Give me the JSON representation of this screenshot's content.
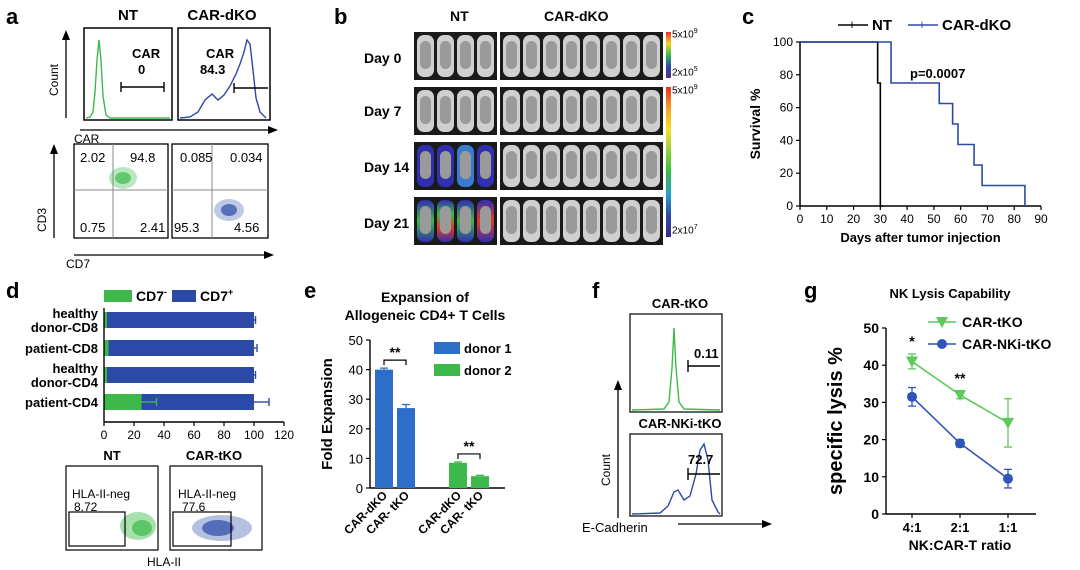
{
  "panels": {
    "a": {
      "label": "a",
      "col_nt": "NT",
      "col_car": "CAR-dKO",
      "hist_ylabel": "Count",
      "hist_xlabel": "CAR",
      "nt_gate_name": "CAR",
      "nt_gate_value": "0",
      "car_gate_name": "CAR",
      "car_gate_value": "84.3",
      "scatter_ylabel": "CD3",
      "scatter_xlabel": "CD7",
      "nt_quads": [
        "2.02",
        "94.8",
        "0.75",
        "2.41"
      ],
      "car_quads": [
        "0.085",
        "0.034",
        "95.3",
        "4.56"
      ]
    },
    "b": {
      "label": "b",
      "col_nt": "NT",
      "col_car": "CAR-dKO",
      "days": [
        "Day 0",
        "Day 7",
        "Day 14",
        "Day 21"
      ],
      "scale1_top": "5x10",
      "scale1_top_exp": "9",
      "scale1_bottom": "2x10",
      "scale1_bottom_exp": "5",
      "scale2_top": "5x10",
      "scale2_top_exp": "9",
      "scale2_bottom": "2x10",
      "scale2_bottom_exp": "7"
    },
    "c": {
      "label": "c",
      "legend": [
        "NT",
        "CAR-dKO"
      ],
      "pvalue": "p=0.0007",
      "ylabel": "Survival %",
      "xlabel": "Days after tumor injection"
    },
    "d": {
      "label": "d",
      "legend_cd7neg": "CD7",
      "legend_cd7neg_sup": "-",
      "legend_cd7pos": "CD7",
      "legend_cd7pos_sup": "+",
      "categories": [
        [
          "healthy",
          "donor-CD8"
        ],
        [
          "patient-CD8"
        ],
        [
          "healthy",
          "donor-CD4"
        ],
        [
          "patient-CD4"
        ]
      ],
      "flow_nt": "NT",
      "flow_car": "CAR-tKO",
      "gate_name": "HLA-II-neg",
      "nt_value": "8.72",
      "car_value": "77.6",
      "flow_xlabel": "HLA-II"
    },
    "e": {
      "label": "e",
      "title_line1": "Expansion of",
      "title_line2": "Allogeneic CD4+ T Cells",
      "ylabel": "Fold Expansion",
      "legend": [
        "donor 1",
        "donor 2"
      ],
      "sig": [
        "**",
        "**"
      ]
    },
    "f": {
      "label": "f",
      "top_title": "CAR-tKO",
      "top_value": "0.11",
      "bottom_title": "CAR-NKi-tKO",
      "bottom_value": "72.7",
      "ylabel": "Count",
      "xlabel": "E-Cadherin"
    },
    "g": {
      "label": "g",
      "title": "NK Lysis Capability",
      "legend": [
        "CAR-tKO",
        "CAR-NKi-tKO"
      ],
      "ylabel": "specific lysis %",
      "xlabel": "NK:CAR-T ratio",
      "sig": [
        "*",
        "**"
      ]
    }
  },
  "chart_data": [
    {
      "panel": "c",
      "type": "line",
      "step": true,
      "ylabel": "Survival %",
      "xlabel": "Days after tumor injection",
      "xlim": [
        0,
        90
      ],
      "ylim": [
        0,
        100
      ],
      "xticks": [
        0,
        10,
        20,
        30,
        40,
        50,
        60,
        70,
        80,
        90
      ],
      "yticks": [
        0,
        20,
        40,
        60,
        80,
        100
      ],
      "series": [
        {
          "name": "NT",
          "color": "#000000",
          "points": [
            [
              0,
              100
            ],
            [
              29,
              100
            ],
            [
              29,
              75
            ],
            [
              30,
              75
            ],
            [
              30,
              0
            ],
            [
              31,
              0
            ]
          ]
        },
        {
          "name": "CAR-dKO",
          "color": "#2b4aa8",
          "points": [
            [
              0,
              100
            ],
            [
              34,
              100
            ],
            [
              34,
              75
            ],
            [
              52,
              75
            ],
            [
              52,
              62.5
            ],
            [
              57,
              62.5
            ],
            [
              57,
              50
            ],
            [
              59,
              50
            ],
            [
              59,
              37.5
            ],
            [
              65,
              37.5
            ],
            [
              65,
              25
            ],
            [
              68,
              25
            ],
            [
              68,
              12.5
            ],
            [
              84,
              12.5
            ],
            [
              84,
              0
            ]
          ]
        }
      ]
    },
    {
      "panel": "d",
      "type": "bar",
      "orientation": "horizontal",
      "stacked": true,
      "categories": [
        "healthy donor-CD8",
        "patient-CD8",
        "healthy donor-CD4",
        "patient-CD4"
      ],
      "xlim": [
        0,
        120
      ],
      "xticks": [
        0,
        20,
        40,
        60,
        80,
        100,
        120
      ],
      "series": [
        {
          "name": "CD7-",
          "color": "#3cb94a",
          "values": [
            2,
            3,
            2,
            25
          ],
          "errors": [
            0,
            0,
            0,
            10
          ]
        },
        {
          "name": "CD7+",
          "color": "#2b4aa8",
          "values": [
            98,
            97,
            98,
            75
          ],
          "errors": [
            1,
            2,
            1,
            10
          ]
        }
      ]
    },
    {
      "panel": "e",
      "type": "bar",
      "ylabel": "Fold Expansion",
      "ylim": [
        0,
        50
      ],
      "yticks": [
        0,
        10,
        20,
        30,
        40,
        50
      ],
      "groups": [
        {
          "name": "donor 1",
          "color": "#2b6fc8",
          "categories": [
            "CAR-dKO",
            "CAR- tKO"
          ],
          "values": [
            40,
            27
          ],
          "errors": [
            0.5,
            1.2
          ]
        },
        {
          "name": "donor 2",
          "color": "#3cb94a",
          "categories": [
            "CAR-dKO",
            "CAR- tKO"
          ],
          "values": [
            8.5,
            4
          ],
          "errors": [
            0.3,
            0.3
          ]
        }
      ]
    },
    {
      "panel": "g",
      "type": "line",
      "title": "NK Lysis Capability",
      "ylabel": "specific lysis %",
      "xlabel": "NK:CAR-T ratio",
      "categories": [
        "4:1",
        "2:1",
        "1:1"
      ],
      "ylim": [
        0,
        50
      ],
      "yticks": [
        0,
        10,
        20,
        30,
        40,
        50
      ],
      "series": [
        {
          "name": "CAR-tKO",
          "color": "#5cc95a",
          "values": [
            41,
            32,
            24.5
          ],
          "errors": [
            2,
            1,
            6.5
          ]
        },
        {
          "name": "CAR-NKi-tKO",
          "color": "#2f55b8",
          "values": [
            31.5,
            19,
            9.5
          ],
          "errors": [
            2.5,
            1,
            2.5
          ]
        }
      ]
    }
  ]
}
